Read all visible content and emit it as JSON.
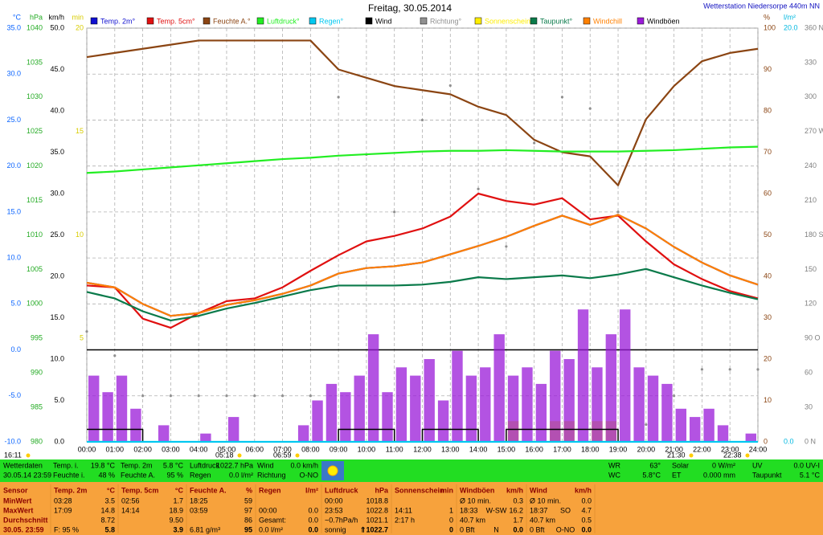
{
  "chart_data": {
    "type": "line",
    "title": "Freitag, 30.05.2014",
    "station": "Wetterstation Niedersorpe 440m NN",
    "xlim": [
      0,
      24
    ],
    "x": [
      0,
      1,
      2,
      3,
      4,
      5,
      6,
      7,
      8,
      9,
      10,
      11,
      12,
      13,
      14,
      15,
      16,
      17,
      18,
      19,
      20,
      21,
      22,
      23,
      24
    ],
    "xticks": [
      {
        "value": 0,
        "label": "00:00"
      },
      {
        "value": 1,
        "label": "01:00"
      },
      {
        "value": 2,
        "label": "02:00"
      },
      {
        "value": 3,
        "label": "03:00"
      },
      {
        "value": 4,
        "label": "04:00"
      },
      {
        "value": 5,
        "label": "05:00"
      },
      {
        "value": 6,
        "label": "06:00"
      },
      {
        "value": 7,
        "label": "07:00"
      },
      {
        "value": 8,
        "label": "08:00"
      },
      {
        "value": 9,
        "label": "09:00"
      },
      {
        "value": 10,
        "label": "10:00"
      },
      {
        "value": 11,
        "label": "11:00"
      },
      {
        "value": 12,
        "label": "12:00"
      },
      {
        "value": 13,
        "label": "13:00"
      },
      {
        "value": 14,
        "label": "14:00"
      },
      {
        "value": 15,
        "label": "15:00"
      },
      {
        "value": 16,
        "label": "16:00"
      },
      {
        "value": 17,
        "label": "17:00"
      },
      {
        "value": 18,
        "label": "18:00"
      },
      {
        "value": 19,
        "label": "19:00"
      },
      {
        "value": 20,
        "label": "20:00"
      },
      {
        "value": 21,
        "label": "21:00"
      },
      {
        "value": 22,
        "label": "22:00"
      },
      {
        "value": 23,
        "label": "23:00"
      },
      {
        "value": 24,
        "label": "24:00"
      }
    ],
    "grid": true,
    "axes": {
      "temp": {
        "unit": "°C",
        "color": "#0a64ff",
        "side": "left",
        "grid": true,
        "zero_line": true,
        "lim": [
          -10,
          35
        ],
        "ticks": [
          {
            "value": -10,
            "label": "-10.0"
          },
          {
            "value": -5,
            "label": "-5.0"
          },
          {
            "value": 0,
            "label": "0.0"
          },
          {
            "value": 5,
            "label": "5.0"
          },
          {
            "value": 10,
            "label": "10.0"
          },
          {
            "value": 15,
            "label": "15.0"
          },
          {
            "value": 20,
            "label": "20.0"
          },
          {
            "value": 25,
            "label": "25.0"
          },
          {
            "value": 30,
            "label": "30.0"
          },
          {
            "value": 35,
            "label": "35.0"
          }
        ]
      },
      "pressure": {
        "unit": "hPa",
        "color": "#22aa22",
        "side": "left",
        "lim": [
          980,
          1040
        ],
        "ticks": [
          980,
          985,
          990,
          995,
          1000,
          1005,
          1010,
          1015,
          1020,
          1025,
          1030,
          1035,
          1040
        ]
      },
      "wind": {
        "unit": "km/h",
        "color": "#000000",
        "side": "left",
        "lim": [
          0,
          50
        ],
        "ticks": [
          {
            "value": 0,
            "label": "0.0"
          },
          {
            "value": 5,
            "label": "5.0"
          },
          {
            "value": 10,
            "label": "10.0"
          },
          {
            "value": 15,
            "label": "15.0"
          },
          {
            "value": 20,
            "label": "20.0"
          },
          {
            "value": 25,
            "label": "25.0"
          },
          {
            "value": 30,
            "label": "30.0"
          },
          {
            "value": 35,
            "label": "35.0"
          },
          {
            "value": 40,
            "label": "40.0"
          },
          {
            "value": 45,
            "label": "45.0"
          },
          {
            "value": 50,
            "label": "50.0"
          }
        ]
      },
      "sun": {
        "unit": "min",
        "color": "#d8cc00",
        "side": "left",
        "lim": [
          0,
          20
        ],
        "ticks": [
          5,
          10,
          15,
          20
        ]
      },
      "humidity": {
        "unit": "%",
        "color": "#8b4513",
        "side": "right",
        "lim": [
          0,
          100
        ],
        "ticks": [
          0,
          10,
          20,
          30,
          40,
          50,
          60,
          70,
          80,
          90,
          100
        ]
      },
      "rain": {
        "unit": "l/m²",
        "color": "#00b8e0",
        "side": "right",
        "lim": [
          0,
          20
        ],
        "ticks": [
          {
            "value": 0,
            "label": "0.0"
          },
          {
            "value": 20,
            "label": "20.0"
          }
        ]
      },
      "direction": {
        "color": "#808080",
        "side": "right",
        "lim": [
          0,
          360
        ],
        "ticks": [
          {
            "value": 0,
            "label": "0 N"
          },
          30,
          60,
          {
            "value": 90,
            "label": "90 O"
          },
          120,
          150,
          {
            "value": 180,
            "label": "180 S"
          },
          210,
          240,
          {
            "value": 270,
            "label": "270 W"
          },
          300,
          330,
          {
            "value": 360,
            "label": "360 N"
          }
        ]
      }
    },
    "series": [
      {
        "name": "Temp. 2m°",
        "type": "line",
        "axis": "temp",
        "color": "#1010d0",
        "values": [
          7.3,
          6.8,
          5.0,
          3.7,
          4.0,
          4.9,
          5.4,
          6.1,
          7.0,
          8.3,
          8.9,
          9.1,
          9.5,
          10.4,
          11.3,
          12.3,
          13.5,
          14.6,
          13.6,
          14.7,
          13.2,
          11.2,
          9.5,
          8.1,
          7.1
        ]
      },
      {
        "name": "Temp. 5cm°",
        "type": "line",
        "axis": "temp",
        "color": "#e01010",
        "values": [
          7.0,
          6.8,
          3.4,
          2.4,
          4.0,
          5.3,
          5.6,
          6.8,
          8.6,
          10.3,
          11.8,
          12.4,
          13.2,
          14.5,
          17.0,
          16.2,
          15.8,
          16.5,
          14.2,
          14.6,
          11.8,
          9.3,
          7.7,
          6.4,
          5.6
        ]
      },
      {
        "name": "Feuchte A.°",
        "type": "line",
        "axis": "humidity",
        "color": "#8b4513",
        "values": [
          93,
          94,
          95,
          96,
          97,
          97,
          97,
          97,
          97,
          90,
          88,
          86,
          85,
          84,
          81,
          79,
          73,
          70,
          69,
          62,
          78,
          86,
          92,
          94,
          95
        ]
      },
      {
        "name": "Luftdruck°",
        "type": "line",
        "axis": "pressure",
        "color": "#22ee22",
        "values": [
          1019.0,
          1019.2,
          1019.5,
          1019.8,
          1020.1,
          1020.4,
          1020.7,
          1021.0,
          1021.2,
          1021.5,
          1021.7,
          1021.9,
          1022.1,
          1022.2,
          1022.2,
          1022.3,
          1022.2,
          1022.1,
          1022.1,
          1022.1,
          1022.2,
          1022.3,
          1022.5,
          1022.7,
          1022.8
        ]
      },
      {
        "name": "Regen°",
        "type": "line",
        "axis": "rain",
        "color": "#00c8f0",
        "values": [
          0,
          0,
          0,
          0,
          0,
          0,
          0,
          0,
          0,
          0,
          0,
          0,
          0,
          0,
          0,
          0,
          0,
          0,
          0,
          0,
          0,
          0,
          0,
          0,
          0
        ]
      },
      {
        "name": "Wind",
        "type": "step",
        "axis": "wind",
        "color": "#000000",
        "values": [
          1.5,
          1.5,
          0,
          0,
          0,
          0,
          0,
          0,
          0,
          1.5,
          1.5,
          0,
          1.5,
          1.5,
          0,
          1.5,
          1.5,
          1.5,
          1.5,
          0,
          0,
          0,
          0,
          0,
          0
        ]
      },
      {
        "name": "Richtung°",
        "type": "dots",
        "axis": "direction",
        "color": "#909090",
        "values": [
          96,
          75,
          40,
          40,
          40,
          40,
          40,
          40,
          40,
          300,
          250,
          200,
          280,
          310,
          220,
          170,
          260,
          300,
          290,
          200,
          15,
          40,
          63,
          63,
          63
        ]
      },
      {
        "name": "Sonnenschein",
        "type": "bars",
        "axis": "sun",
        "color": "#ffee00",
        "x": [
          0,
          0.5,
          1,
          1.5,
          2,
          2.5,
          3,
          3.5,
          4,
          4.5,
          5,
          5.5,
          6,
          6.5,
          7,
          7.5,
          8,
          8.5,
          9,
          9.5,
          10,
          10.5,
          11,
          11.5,
          12,
          12.5,
          13,
          13.5,
          14,
          14.5,
          15,
          15.5,
          16,
          16.5,
          17,
          17.5,
          18,
          18.5,
          19,
          19.5,
          20,
          20.5,
          21,
          21.5,
          22,
          22.5,
          23,
          23.5
        ],
        "values": [
          0,
          0,
          0,
          0,
          0,
          0,
          0,
          0,
          0,
          0,
          0,
          0,
          0,
          0,
          0,
          0,
          0,
          0,
          0,
          0,
          0,
          0,
          0,
          0,
          0,
          0,
          0,
          0,
          0,
          0,
          1,
          0,
          0,
          1,
          1,
          0,
          1,
          1,
          0,
          0,
          0,
          0,
          0,
          0,
          0,
          0,
          0,
          0
        ]
      },
      {
        "name": "Taupunkt°",
        "type": "line",
        "axis": "temp",
        "color": "#0a7a4a",
        "values": [
          6.3,
          5.6,
          4.2,
          3.2,
          3.7,
          4.5,
          5.1,
          5.8,
          6.5,
          7.0,
          7.0,
          7.0,
          7.1,
          7.4,
          7.9,
          7.7,
          7.9,
          8.1,
          7.8,
          8.2,
          8.8,
          7.9,
          7.0,
          6.2,
          5.5
        ]
      },
      {
        "name": "Windchill",
        "type": "line",
        "axis": "temp",
        "color": "#ff8000",
        "values": [
          7.3,
          6.8,
          5.0,
          3.7,
          4.0,
          4.9,
          5.4,
          6.1,
          7.0,
          8.3,
          8.9,
          9.1,
          9.5,
          10.4,
          11.3,
          12.3,
          13.5,
          14.6,
          13.6,
          14.7,
          13.2,
          11.2,
          9.5,
          8.1,
          7.1
        ]
      },
      {
        "name": "Windböen",
        "type": "bars",
        "axis": "wind",
        "color": "#9a1ad8",
        "x": [
          0,
          0.5,
          1,
          1.5,
          2,
          2.5,
          3,
          3.5,
          4,
          4.5,
          5,
          5.5,
          6,
          6.5,
          7,
          7.5,
          8,
          8.5,
          9,
          9.5,
          10,
          10.5,
          11,
          11.5,
          12,
          12.5,
          13,
          13.5,
          14,
          14.5,
          15,
          15.5,
          16,
          16.5,
          17,
          17.5,
          18,
          18.5,
          19,
          19.5,
          20,
          20.5,
          21,
          21.5,
          22,
          22.5,
          23,
          23.5
        ],
        "values": [
          8,
          6,
          8,
          4,
          0,
          2,
          0,
          0,
          1,
          0,
          3,
          0,
          0,
          0,
          0,
          2,
          5,
          7,
          6,
          8,
          13,
          6,
          9,
          8,
          10,
          5,
          11,
          8,
          9,
          13,
          8,
          9,
          7,
          11,
          10,
          16,
          9,
          13,
          16,
          9,
          8,
          7,
          4,
          3,
          4,
          2,
          0,
          1
        ]
      }
    ],
    "sun_times": [
      "16:11",
      "05:18",
      "06:59",
      "21:30",
      "22:38"
    ]
  },
  "current": {
    "label": "Wetterdaten",
    "timestamp": "30.05.14 23:59",
    "items": [
      [
        "Temp. i.",
        "19.8 °C"
      ],
      [
        "Feuchte i.",
        "48 %"
      ],
      [
        "Temp. 2m",
        "5.8 °C"
      ],
      [
        "Feuchte A.",
        "95 %"
      ],
      [
        "Luftdruck",
        "1022.7 hPa"
      ],
      [
        "Regen",
        "0.0 l/m²"
      ],
      [
        "Wind",
        "0.0 km/h"
      ],
      [
        "Richtung",
        "O-NO"
      ],
      [
        "WR",
        "63°"
      ],
      [
        "WC",
        "5.8°C"
      ],
      [
        "Solar",
        "0 W/m²"
      ],
      [
        "ET",
        "0.000 mm"
      ],
      [
        "UV",
        "0.0 UV-I"
      ],
      [
        "Taupunkt",
        "5.1 °C"
      ]
    ]
  },
  "table": {
    "header": [
      [
        "Sensor"
      ],
      [
        "Temp. 2m",
        "°C"
      ],
      [
        "Temp. 5cm",
        "°C"
      ],
      [
        "Feuchte A.",
        "%"
      ],
      [
        "Regen",
        "l/m²"
      ],
      [
        "Luftdruck",
        "hPa"
      ],
      [
        "Sonnenschein",
        "min"
      ],
      [
        "Windböen",
        "km/h"
      ],
      [
        "Wind",
        "km/h"
      ]
    ],
    "rows": [
      [
        [
          "MinWert"
        ],
        [
          "03:28",
          "3.5"
        ],
        [
          "02:56",
          "1.7"
        ],
        [
          "18:25",
          "59"
        ],
        [],
        [
          "00:00",
          "1018.8"
        ],
        [],
        [
          "Ø 10 min.",
          "0.3"
        ],
        [
          "Ø 10 min.",
          "0.0"
        ]
      ],
      [
        [
          "MaxWert"
        ],
        [
          "17:09",
          "14.8"
        ],
        [
          "14:14",
          "18.9"
        ],
        [
          "03:59",
          "97"
        ],
        [
          "00:00",
          "0.0"
        ],
        [
          "23:53",
          "1022.8"
        ],
        [
          "14:11",
          "1"
        ],
        [
          "18:33",
          "W-SW",
          "16.2"
        ],
        [
          "18:37",
          "SO",
          "4.7"
        ]
      ],
      [
        [
          "Durchschnitt"
        ],
        [
          "8.72"
        ],
        [
          "9.50"
        ],
        [
          "86"
        ],
        [
          "Gesamt:",
          "0.0"
        ],
        [
          "~0.7hPa/h",
          "1021.1"
        ],
        [
          "2:17 h",
          "0"
        ],
        [
          "40.7 km",
          "1.7"
        ],
        [
          "40.7 km",
          "0.5"
        ]
      ],
      [
        [
          "30.05. 23:59"
        ],
        [
          "F: 95 %",
          "5.8"
        ],
        [
          "3.9"
        ],
        [
          "6.81 g/m³",
          "95"
        ],
        [
          "0.0 l/m²",
          "0.0"
        ],
        [
          "sonnig",
          "⇑1022.7"
        ],
        [
          "0"
        ],
        [
          "0 Bft",
          "N",
          "0.0"
        ],
        [
          "0 Bft",
          "O-NO",
          "0.0"
        ]
      ]
    ]
  }
}
